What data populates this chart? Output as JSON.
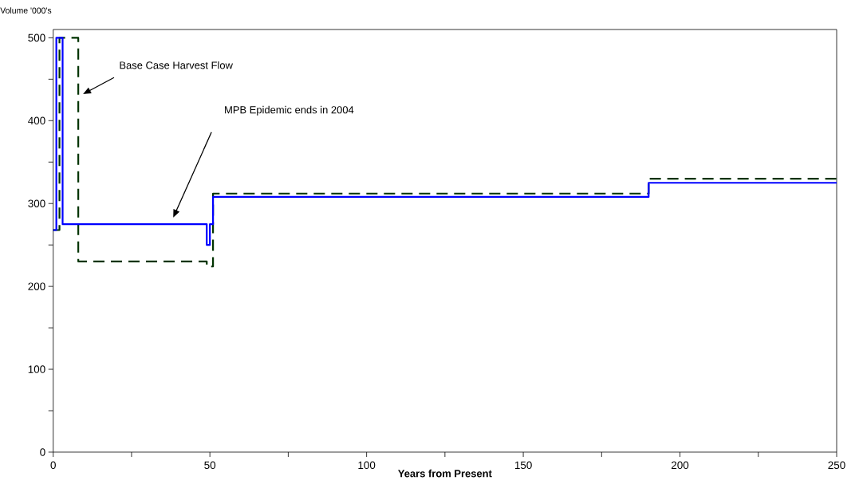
{
  "chart_data": {
    "type": "step",
    "xlabel": "Years from Present",
    "ylabel": "Volume '000's",
    "xlim": [
      0,
      250
    ],
    "ylim": [
      0,
      510
    ],
    "xticks": [
      0,
      {
        "value": 25,
        "label": null
      },
      50,
      {
        "value": 75,
        "label": null
      },
      100,
      {
        "value": 125,
        "label": null
      },
      150,
      {
        "value": 175,
        "label": null
      },
      200,
      {
        "value": 225,
        "label": null
      },
      250
    ],
    "yticks": [
      0,
      {
        "value": 50,
        "label": null
      },
      100,
      {
        "value": 150,
        "label": null
      },
      200,
      {
        "value": 250,
        "label": null
      },
      300,
      {
        "value": 350,
        "label": null
      },
      400,
      {
        "value": 450,
        "label": null
      },
      500
    ],
    "series": [
      {
        "color": "#003300",
        "line_style": "dashed",
        "x": [
          0,
          2,
          8,
          49,
          51,
          190,
          250
        ],
        "values": [
          268,
          500,
          230,
          224,
          312,
          330,
          330
        ]
      },
      {
        "color": "#0000ff",
        "line_style": "solid",
        "x": [
          0,
          1,
          3,
          49,
          50,
          51,
          190,
          250
        ],
        "values": [
          268,
          500,
          275,
          250,
          275,
          308,
          325,
          325
        ]
      }
    ],
    "annotations": [
      "Base Case Harvest Flow",
      "MPB Epidemic ends in 2004"
    ]
  }
}
